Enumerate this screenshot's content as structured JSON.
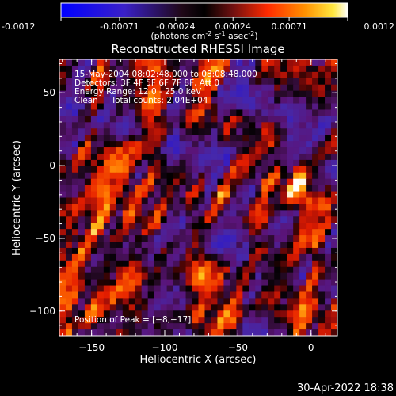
{
  "colorbar": {
    "ticks": [
      "-0.0012",
      "-0.00071",
      "-0.00024",
      "0.00024",
      "0.00071",
      "0.0012"
    ],
    "tick_values": [
      -0.0012,
      -0.00071,
      -0.00024,
      0.00024,
      0.00071,
      0.0012
    ],
    "range": [
      -0.0012,
      0.0012
    ],
    "units_main": "(photons cm",
    "units_sup1": "-2",
    "units_mid": " s",
    "units_sup2": "-1",
    "units_end": " asec",
    "units_sup3": "-2",
    "units_close": ")"
  },
  "chart_data": {
    "type": "heatmap",
    "title": "Reconstructed RHESSI Image",
    "xlabel": "Heliocentric X (arcsec)",
    "ylabel": "Heliocentric Y (arcsec)",
    "xlim": [
      -172,
      18
    ],
    "ylim": [
      -117,
      73
    ],
    "xticks": [
      -150,
      -100,
      -50,
      0
    ],
    "yticks": [
      -100,
      -50,
      0,
      50
    ],
    "xtick_labels": [
      "−150",
      "−100",
      "−50",
      "0"
    ],
    "ytick_labels": [
      "−100",
      "−50",
      "0",
      "50"
    ],
    "annotations": [
      "15-May-2004 08:02:48.000 to 08:08:48.000",
      "Detectors: 3F 4F 5F 6F 7F 8F, Att 0",
      "Energy Range: 12.0 - 25.0 keV",
      "Clean     Total counts: 2.04E+04"
    ],
    "peak_label": "Position of Peak = [−8,−17]",
    "peak": [
      -8,
      -17
    ],
    "colors": {
      "negative_low": "#0000ff",
      "zero": "#000000",
      "positive_mid": "#ff3000",
      "positive_high": "#ffffff"
    }
  },
  "timestamp": "30-Apr-2022 18:38"
}
